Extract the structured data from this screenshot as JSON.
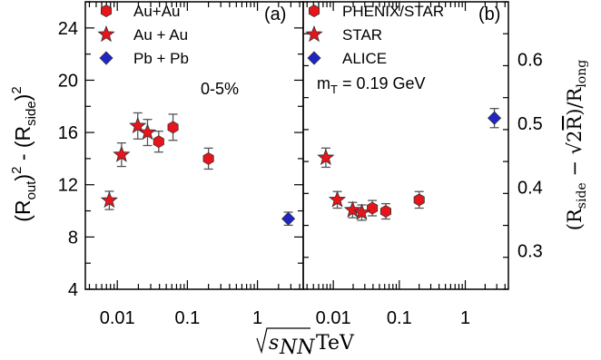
{
  "chart_data": [
    {
      "type": "scatter",
      "panel_label": "(a)",
      "ylabel_parts": [
        "(R",
        "out",
        ")",
        "2",
        " - (R",
        "side",
        ")",
        "2"
      ],
      "xlabel": "",
      "x_scale": "log",
      "xlim": [
        0.0035,
        4.5
      ],
      "ylim": [
        4,
        26
      ],
      "yticks": [
        4,
        8,
        12,
        16,
        20,
        24
      ],
      "xticks": [
        0.01,
        0.1,
        1
      ],
      "xtick_labels": [
        "0.01",
        "0.1",
        "1"
      ],
      "annotation": "0-5%",
      "legend": [
        "Au+Au",
        "Au + Au",
        "Pb + Pb"
      ],
      "series": [
        {
          "name": "Au+Au",
          "marker": "hexagon",
          "color": "#e8141c",
          "x": [
            0.039,
            0.0624,
            0.2
          ],
          "y": [
            15.3,
            16.4,
            14.0
          ],
          "err": [
            0.8,
            1.0,
            0.8
          ]
        },
        {
          "name": "Au + Au",
          "marker": "star",
          "color": "#e8141c",
          "x": [
            0.0077,
            0.0115,
            0.0196,
            0.027
          ],
          "y": [
            10.8,
            14.3,
            16.5,
            16.0
          ],
          "err": [
            0.7,
            0.9,
            1.0,
            1.0
          ]
        },
        {
          "name": "Pb + Pb",
          "marker": "diamond",
          "color": "#1f24c8",
          "x": [
            2.76
          ],
          "y": [
            9.4
          ],
          "err": [
            0.5
          ]
        }
      ]
    },
    {
      "type": "scatter",
      "panel_label": "(b)",
      "ylabel": "(Rside − √2R̄)/Rlong",
      "xlabel": "√sNN TeV",
      "x_scale": "log",
      "xlim": [
        0.0035,
        4.5
      ],
      "ylim": [
        0.24,
        0.69
      ],
      "yticks": [
        0.3,
        0.4,
        0.5,
        0.6
      ],
      "ytick_labels": [
        "0.3",
        "0.4",
        "0.5",
        "0.6"
      ],
      "xticks": [
        0.01,
        0.1,
        1
      ],
      "xtick_labels": [
        "0.01",
        "0.1",
        "1"
      ],
      "annotation": "mT = 0.19 GeV",
      "legend": [
        "PHENIX/STAR",
        "STAR",
        "ALICE"
      ],
      "series": [
        {
          "name": "PHENIX/STAR",
          "marker": "hexagon",
          "color": "#e8141c",
          "x": [
            0.039,
            0.0624,
            0.2
          ],
          "y": [
            0.367,
            0.362,
            0.38
          ],
          "err": [
            0.012,
            0.012,
            0.013
          ]
        },
        {
          "name": "STAR",
          "marker": "star",
          "color": "#e8141c",
          "x": [
            0.0077,
            0.0115,
            0.0196,
            0.027
          ],
          "y": [
            0.446,
            0.38,
            0.364,
            0.36
          ],
          "err": [
            0.015,
            0.013,
            0.012,
            0.012
          ]
        },
        {
          "name": "ALICE",
          "marker": "diamond",
          "color": "#1f24c8",
          "x": [
            2.76
          ],
          "y": [
            0.508
          ],
          "err": [
            0.015
          ]
        }
      ]
    }
  ]
}
